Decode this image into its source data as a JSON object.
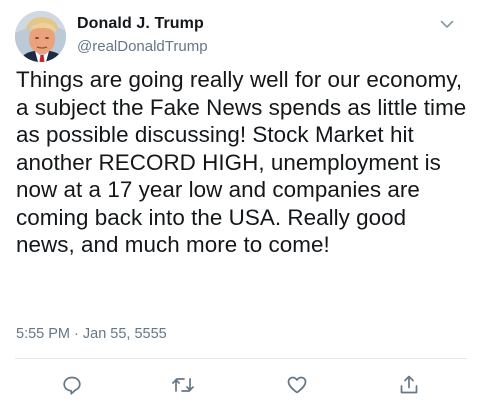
{
  "tweet": {
    "author": {
      "display_name": "Donald J. Trump",
      "handle": "@realDonaldTrump",
      "avatar_icon": "avatar-photo"
    },
    "text": "Things are going really well for our economy, a subject the Fake News spends as little time as possible discussing! Stock Market hit another RECORD HIGH, unemployment is now at a 17 year low and companies are coming back into the USA. Really good news, and much more to come!",
    "timestamp": "5:55 PM · Jan 55, 5555",
    "menu_icon": "chevron-down-icon"
  },
  "actions": {
    "items": [
      {
        "icon": "reply-icon"
      },
      {
        "icon": "retweet-icon"
      },
      {
        "icon": "like-icon"
      },
      {
        "icon": "share-icon"
      }
    ]
  },
  "colors": {
    "text": "#14171a",
    "secondary_text": "#657786",
    "divider": "#e1e8ed",
    "icon": "#657786"
  }
}
